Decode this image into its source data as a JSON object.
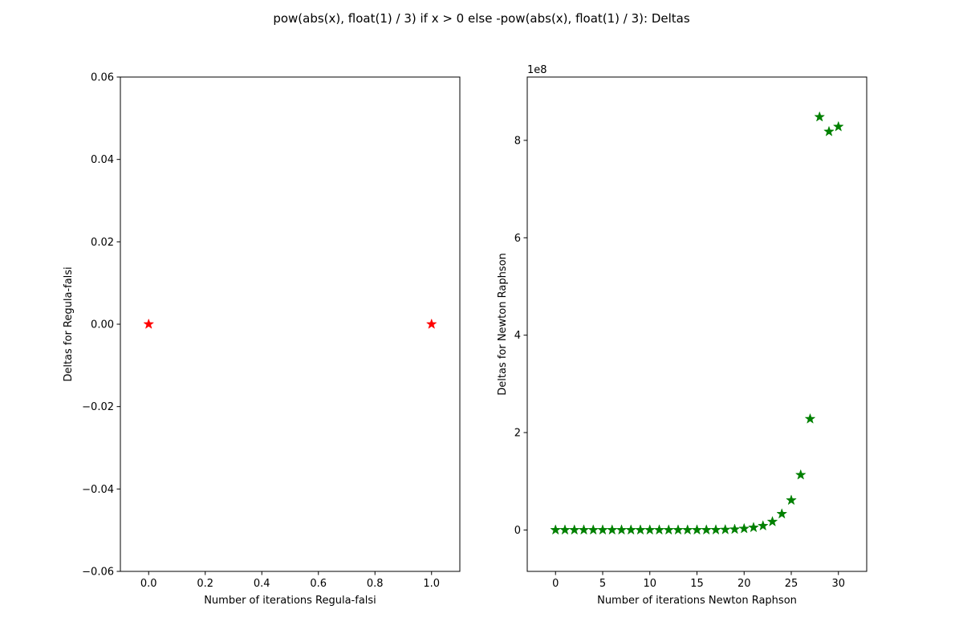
{
  "figure": {
    "suptitle": "pow(abs(x), float(1) / 3) if x > 0 else -pow(abs(x), float(1) / 3): Deltas"
  },
  "chart_data": [
    {
      "type": "scatter",
      "xlabel": "Number of iterations Regula-falsi",
      "ylabel": "Deltas for Regula-falsi",
      "xlim": [
        -0.1,
        1.1
      ],
      "ylim": [
        -0.06,
        0.06
      ],
      "xticks": [
        0.0,
        0.2,
        0.4,
        0.6,
        0.8,
        1.0
      ],
      "xtick_labels": [
        "0.0",
        "0.2",
        "0.4",
        "0.6",
        "0.8",
        "1.0"
      ],
      "yticks": [
        -0.06,
        -0.04,
        -0.02,
        0.0,
        0.02,
        0.04,
        0.06
      ],
      "ytick_labels": [
        "−0.06",
        "−0.04",
        "−0.02",
        "0.00",
        "0.02",
        "0.04",
        "0.06"
      ],
      "offset_text": "",
      "grid": false,
      "marker": "star",
      "color": "#ff0000",
      "x": [
        0,
        1
      ],
      "y": [
        0,
        0
      ]
    },
    {
      "type": "scatter",
      "xlabel": "Number of iterations Newton Raphson",
      "ylabel": "Deltas for Newton Raphson",
      "xlim": [
        -3,
        33
      ],
      "ylim": [
        -0.85,
        9.3
      ],
      "xticks": [
        0,
        5,
        10,
        15,
        20,
        25,
        30
      ],
      "xtick_labels": [
        "0",
        "5",
        "10",
        "15",
        "20",
        "25",
        "30"
      ],
      "yticks": [
        0,
        2,
        4,
        6,
        8
      ],
      "ytick_labels": [
        "0",
        "2",
        "4",
        "6",
        "8"
      ],
      "offset_text": "1e8",
      "grid": false,
      "marker": "star",
      "color": "#008000",
      "x": [
        0,
        1,
        2,
        3,
        4,
        5,
        6,
        7,
        8,
        9,
        10,
        11,
        12,
        13,
        14,
        15,
        16,
        17,
        18,
        19,
        20,
        21,
        22,
        23,
        24,
        25,
        26,
        27,
        28,
        29,
        30
      ],
      "y": [
        0,
        0,
        0,
        0,
        0,
        0,
        0,
        0,
        0,
        0,
        0,
        0,
        0,
        0,
        0,
        0,
        0.0005,
        0.002,
        0.006,
        0.013,
        0.027,
        0.05,
        0.085,
        0.17,
        0.33,
        0.61,
        1.13,
        2.28,
        8.48,
        8.18,
        8.28
      ]
    }
  ]
}
